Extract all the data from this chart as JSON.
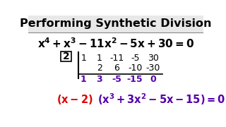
{
  "title": "Performing Synthetic Division",
  "title_color": "#000000",
  "title_fontsize": 11.5,
  "bg_color": "#ffffff",
  "title_bg": "#e8e8e8",
  "equation": "x^4 + x^3 - 11x^2 - 5x + 30 = 0",
  "eq_color": "#000000",
  "eq_fontsize": 11.0,
  "divisor": "2",
  "row1": [
    "1",
    "1",
    "-11",
    "-5",
    "30"
  ],
  "row2": [
    "2",
    "6",
    "-10",
    "-30"
  ],
  "row3": [
    "1",
    "3",
    "-5",
    "-15",
    "0"
  ],
  "row3_color": "#5500aa",
  "result_color1": "#dd0000",
  "result_color2": "#5500aa",
  "result_fontsize": 10.5,
  "syn_fontsize": 9.0
}
